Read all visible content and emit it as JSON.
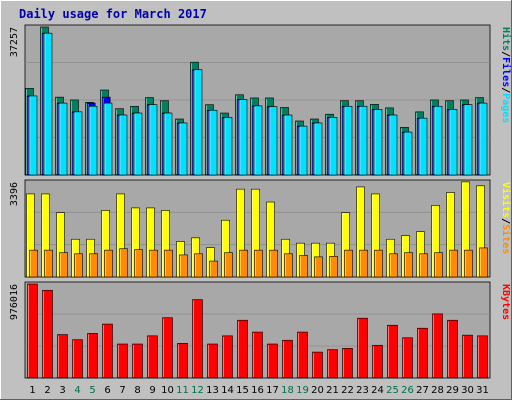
{
  "chart_data": {
    "type": "bar",
    "title": "Daily usage for March 2017",
    "categories": [
      "1",
      "2",
      "3",
      "4",
      "5",
      "6",
      "7",
      "8",
      "9",
      "10",
      "11",
      "12",
      "13",
      "14",
      "15",
      "16",
      "17",
      "18",
      "19",
      "20",
      "21",
      "22",
      "23",
      "24",
      "25",
      "26",
      "27",
      "28",
      "29",
      "30",
      "31"
    ],
    "weekend_days": [
      "4",
      "5",
      "11",
      "12",
      "18",
      "19",
      "25",
      "26"
    ],
    "colors": {
      "background": "#c0c0c0",
      "plot_background": "#a8a8a8",
      "gridline": "#8c8c8c",
      "title": "#0000b0",
      "label": "#000000",
      "weekend_label": "#006e46",
      "pages": "#00e0ff",
      "files": "#0000ff",
      "hits": "#008060",
      "visits": "#ffff00",
      "sites": "#ff8c00",
      "kbytes": "#ff0000"
    },
    "panels": [
      {
        "id": "hits_files_pages",
        "max_label": "37257",
        "right_label": [
          "Pages",
          "/",
          "Files",
          "/",
          "Hits"
        ],
        "right_label_colors": [
          "#00e0ff",
          "#000000",
          "#0000ff",
          "#000000",
          "#008060"
        ],
        "ylim": [
          0,
          37257
        ],
        "series": [
          {
            "name": "Hits",
            "key": "hits",
            "values": [
              21800,
              37257,
              19600,
              18900,
              18300,
              21400,
              16700,
              17300,
              19500,
              18700,
              14100,
              28400,
              17700,
              15600,
              20200,
              19400,
              19400,
              17000,
              13600,
              14100,
              15300,
              18700,
              18700,
              17800,
              16900,
              12000,
              15900,
              18900,
              18700,
              18900,
              19500
            ]
          },
          {
            "name": "Files",
            "key": "files",
            "values": [
              19900,
              35700,
              18100,
              15900,
              18100,
              19600,
              15100,
              15600,
              17700,
              15600,
              13100,
              26500,
              16300,
              14500,
              19000,
              17400,
              17200,
              15100,
              12300,
              13100,
              14500,
              17300,
              17300,
              16500,
              15100,
              10800,
              14300,
              17300,
              16500,
              17700,
              18100
            ]
          },
          {
            "name": "Pages",
            "key": "pages",
            "values": [
              19900,
              35700,
              18100,
              15900,
              17300,
              18100,
              15100,
              15600,
              17700,
              15600,
              13100,
              26500,
              16300,
              14500,
              19000,
              17400,
              17200,
              15100,
              12300,
              13100,
              14500,
              17300,
              17300,
              16500,
              15100,
              10800,
              14300,
              17300,
              16500,
              17700,
              18100
            ]
          }
        ]
      },
      {
        "id": "visits_sites",
        "max_label": "3396",
        "right_label": [
          "Sites",
          "/",
          "Visits"
        ],
        "right_label_colors": [
          "#ff8c00",
          "#000000",
          "#ffff00"
        ],
        "ylim": [
          0,
          3396
        ],
        "series": [
          {
            "name": "Visits",
            "key": "visits",
            "values": [
              2970,
              2970,
              2300,
              1350,
              1350,
              2380,
              2970,
              2470,
              2470,
              2380,
              1270,
              1400,
              1050,
              2030,
              3140,
              3140,
              2680,
              1350,
              1210,
              1210,
              1210,
              2300,
              3220,
              2970,
              1350,
              1480,
              1620,
              2560,
              3020,
              3400,
              3260
            ]
          },
          {
            "name": "Sites",
            "key": "sites",
            "values": [
              960,
              960,
              870,
              830,
              830,
              960,
              1010,
              980,
              960,
              960,
              790,
              830,
              570,
              870,
              960,
              960,
              960,
              830,
              770,
              720,
              740,
              960,
              960,
              960,
              830,
              870,
              830,
              870,
              960,
              960,
              1040
            ]
          }
        ]
      },
      {
        "id": "kbytes",
        "max_label": "976016",
        "right_label": [
          "KBytes"
        ],
        "right_label_colors": [
          "#ff0000"
        ],
        "ylim": [
          0,
          976016
        ],
        "series": [
          {
            "name": "KBytes",
            "key": "kbytes",
            "values": [
              976016,
              911000,
              451000,
              398000,
              463000,
              560000,
              353000,
              353000,
              438000,
              626000,
              360000,
              814000,
              353000,
              438000,
              600000,
              477000,
              353000,
              392000,
              477000,
              269000,
              295000,
              308000,
              621000,
              340000,
              548000,
              418000,
              517000,
              666000,
              600000,
              445000,
              438000
            ]
          }
        ]
      }
    ]
  }
}
